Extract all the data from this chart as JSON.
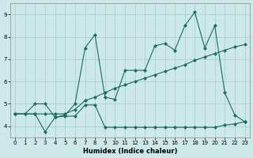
{
  "xlabel": "Humidex (Indice chaleur)",
  "bg_color": "#cce8e8",
  "grid_color": "#aad0d0",
  "line_color": "#1a6b5a",
  "xlim": [
    -0.5,
    23.5
  ],
  "ylim": [
    3.5,
    9.5
  ],
  "xticks": [
    0,
    1,
    2,
    3,
    4,
    5,
    6,
    7,
    8,
    9,
    10,
    11,
    12,
    13,
    14,
    15,
    16,
    17,
    18,
    19,
    20,
    21,
    22,
    23
  ],
  "yticks": [
    4,
    5,
    6,
    7,
    8,
    9
  ],
  "line1_x": [
    0,
    1,
    2,
    3,
    4,
    5,
    6,
    7,
    8,
    9,
    10,
    11,
    12,
    13,
    14,
    15,
    16,
    17,
    18,
    19,
    20,
    21,
    22,
    23
  ],
  "line1_y": [
    4.55,
    4.55,
    4.55,
    3.75,
    4.4,
    4.45,
    4.45,
    4.95,
    4.95,
    3.95,
    3.95,
    3.95,
    3.95,
    3.95,
    3.95,
    3.95,
    3.95,
    3.95,
    3.95,
    3.95,
    3.95,
    4.05,
    4.1,
    4.2
  ],
  "line2_x": [
    0,
    2,
    3,
    4,
    5,
    6,
    7,
    8,
    9,
    10,
    11,
    12,
    13,
    14,
    15,
    16,
    17,
    18,
    19,
    20,
    21,
    22,
    23
  ],
  "line2_y": [
    4.55,
    4.55,
    4.55,
    4.55,
    4.55,
    4.75,
    5.15,
    5.3,
    5.5,
    5.7,
    5.85,
    6.0,
    6.15,
    6.3,
    6.45,
    6.6,
    6.75,
    6.95,
    7.1,
    7.25,
    7.4,
    7.55,
    7.65
  ],
  "line3_x": [
    0,
    1,
    2,
    3,
    4,
    5,
    6,
    7,
    8,
    9,
    10,
    11,
    12,
    13,
    14,
    15,
    16,
    17,
    18,
    19,
    20,
    21,
    22,
    23
  ],
  "line3_y": [
    4.55,
    4.55,
    5.0,
    5.0,
    4.4,
    4.5,
    5.0,
    7.5,
    8.1,
    5.3,
    5.2,
    6.5,
    6.5,
    6.5,
    7.6,
    7.7,
    7.4,
    8.5,
    9.1,
    7.5,
    8.5,
    5.5,
    4.5,
    4.2
  ]
}
